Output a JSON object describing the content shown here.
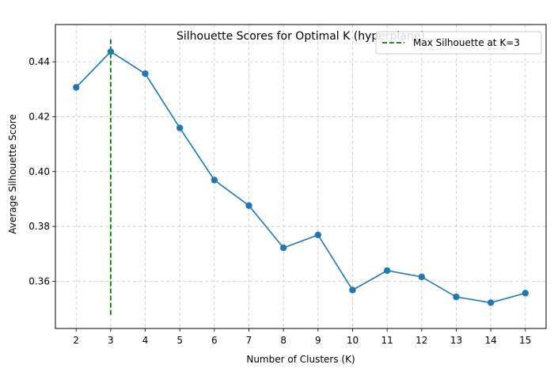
{
  "chart_data": {
    "type": "line",
    "title": "Silhouette Scores for Optimal K (hyperplane)",
    "xlabel": "Number of Clusters (K)",
    "ylabel": "Average Silhouette Score",
    "x": [
      2,
      3,
      4,
      5,
      6,
      7,
      8,
      9,
      10,
      11,
      12,
      13,
      14,
      15
    ],
    "series": [
      {
        "values": [
          0.4307,
          0.4437,
          0.4357,
          0.4159,
          0.3969,
          0.3876,
          0.3722,
          0.3769,
          0.3568,
          0.3639,
          0.3616,
          0.3543,
          0.3522,
          0.3557
        ],
        "color": "#1f77b4",
        "marker": "circle"
      }
    ],
    "reference_line": {
      "orientation": "vertical",
      "x": 3,
      "y_range": [
        0.3478,
        0.4486
      ],
      "style": "dashed",
      "color": "#008000",
      "label": "Max Silhouette at K=3"
    },
    "xticks": [
      "2",
      "3",
      "4",
      "5",
      "6",
      "7",
      "8",
      "9",
      "10",
      "11",
      "12",
      "13",
      "14",
      "15"
    ],
    "yticks": [
      "0.36",
      "0.38",
      "0.40",
      "0.42",
      "0.44"
    ],
    "ytick_values": [
      0.36,
      0.38,
      0.4,
      0.42,
      0.44
    ],
    "xlim": [
      1.4,
      15.6
    ],
    "ylim": [
      0.3428,
      0.4536
    ],
    "grid": true,
    "legend_position": "top-right"
  }
}
